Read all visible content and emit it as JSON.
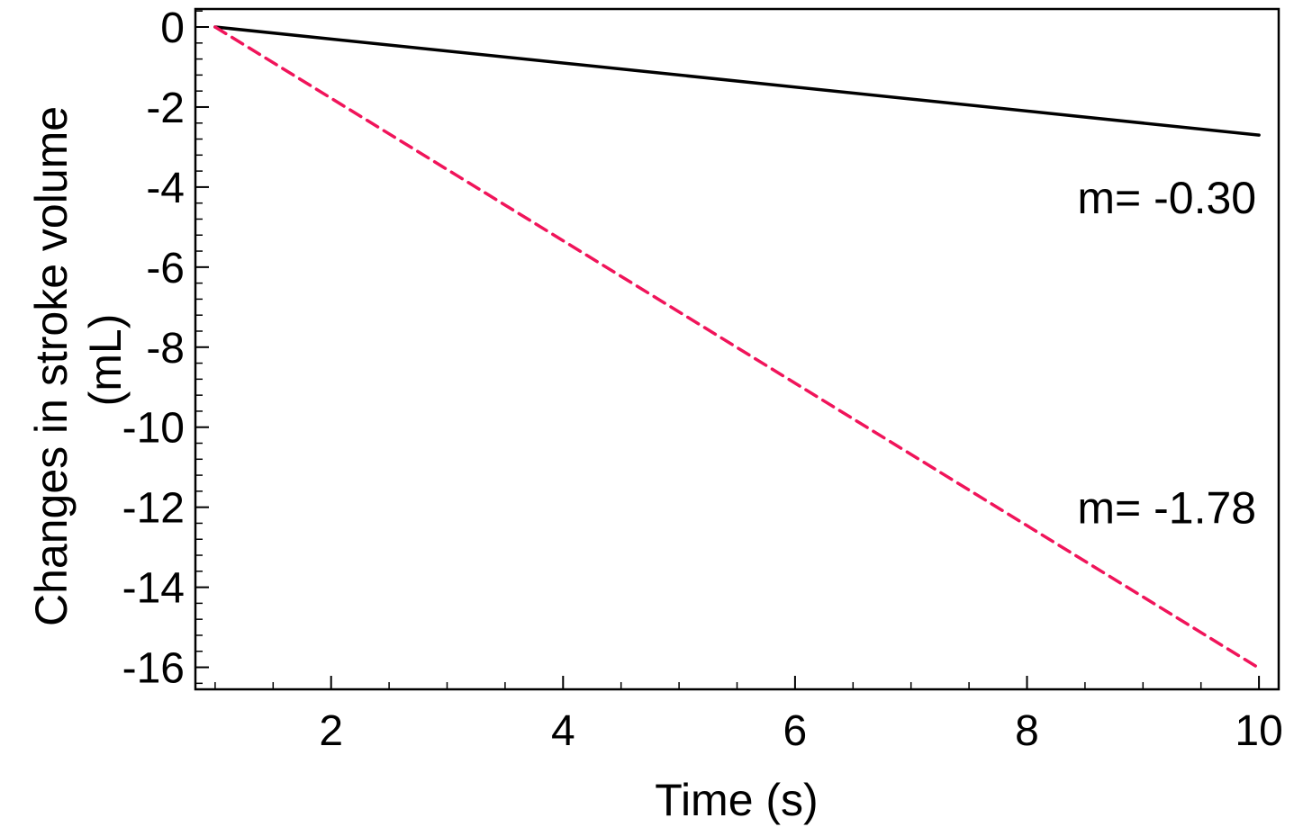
{
  "chart_data": {
    "type": "line",
    "title": "",
    "xlabel": "Time (s)",
    "ylabel_lines": [
      "Changes in stroke volume",
      "(mL)"
    ],
    "xlim": [
      0.83,
      10.17
    ],
    "ylim": [
      -16.55,
      0.45
    ],
    "x_ticks": [
      2,
      4,
      6,
      8,
      10
    ],
    "x_tick_labels": [
      "2",
      "4",
      "6",
      "8",
      "10"
    ],
    "x_minor_step": 0.5,
    "y_ticks": [
      0,
      -2,
      -4,
      -6,
      -8,
      -10,
      -12,
      -14,
      -16
    ],
    "y_tick_labels": [
      "0",
      "-2",
      "-4",
      "-6",
      "-8",
      "-10",
      "-12",
      "-14",
      "-16"
    ],
    "y_minor_step": 0.4,
    "grid": false,
    "legend": "none",
    "series": [
      {
        "x": [
          1,
          10
        ],
        "y": [
          0,
          -2.7
        ],
        "color": "#000000",
        "style": "solid"
      },
      {
        "x": [
          1,
          10
        ],
        "y": [
          0,
          -16.02
        ],
        "color": "#f0145a",
        "style": "dashed"
      }
    ],
    "annotations": [
      {
        "text": "m= -0.30",
        "x": 10,
        "y": -4.25
      },
      {
        "text": "m= -1.78",
        "x": 10,
        "y": -12.0
      }
    ]
  }
}
